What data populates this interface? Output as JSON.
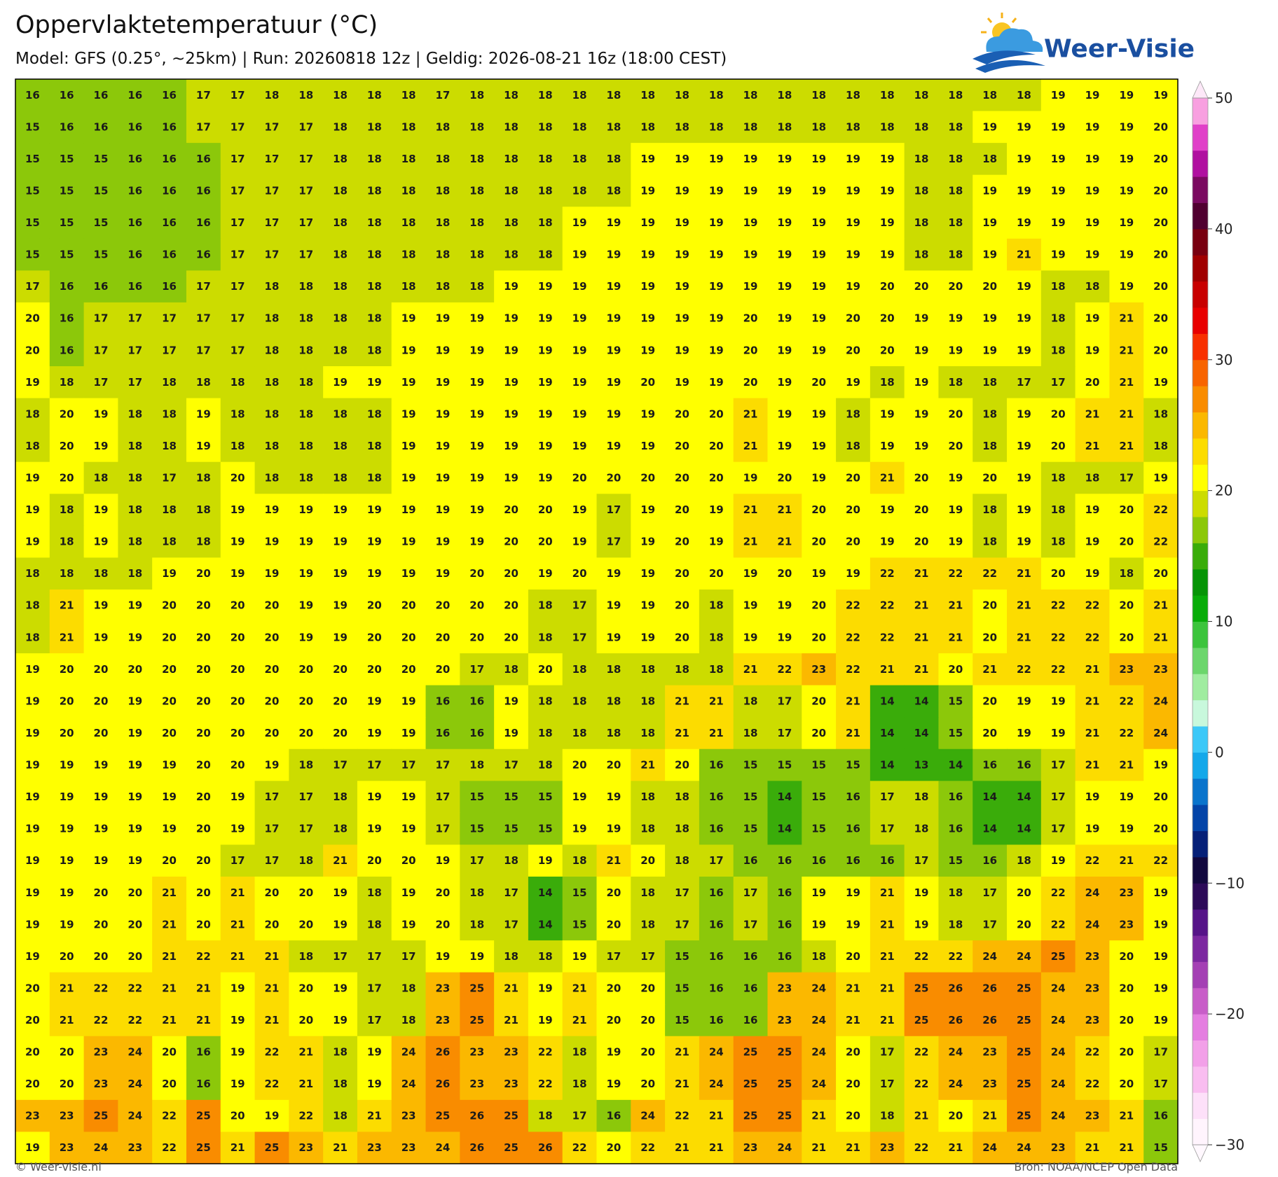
{
  "header": {
    "title": "Oppervlaktetemperatuur (°C)",
    "subtitle": "Model: GFS (0.25°, ~25km)  |  Run: 20260818 12z  |  Geldig: 2026-08-21 16z (18:00 CEST)",
    "logo": "Weer-Visie"
  },
  "chart_data": {
    "type": "heatmap",
    "values": [
      [
        16,
        16,
        16,
        16,
        16,
        17,
        17,
        18,
        18,
        18,
        18,
        18,
        17,
        18,
        18,
        18,
        18,
        18,
        18,
        18,
        18,
        18,
        18,
        18,
        18,
        18,
        18,
        18,
        18,
        18,
        19,
        19,
        19,
        19
      ],
      [
        15,
        16,
        16,
        16,
        16,
        17,
        17,
        17,
        17,
        18,
        18,
        18,
        18,
        18,
        18,
        18,
        18,
        18,
        18,
        18,
        18,
        18,
        18,
        18,
        18,
        18,
        18,
        18,
        19,
        19,
        19,
        19,
        19,
        20
      ],
      [
        15,
        15,
        15,
        16,
        16,
        16,
        17,
        17,
        17,
        18,
        18,
        18,
        18,
        18,
        18,
        18,
        18,
        18,
        19,
        19,
        19,
        19,
        19,
        19,
        19,
        19,
        18,
        18,
        18,
        19,
        19,
        19,
        19,
        20
      ],
      [
        15,
        15,
        15,
        16,
        16,
        16,
        17,
        17,
        17,
        18,
        18,
        18,
        18,
        18,
        18,
        18,
        18,
        18,
        19,
        19,
        19,
        19,
        19,
        19,
        19,
        19,
        18,
        18,
        19,
        19,
        19,
        19,
        19,
        20
      ],
      [
        15,
        15,
        15,
        16,
        16,
        16,
        17,
        17,
        17,
        18,
        18,
        18,
        18,
        18,
        18,
        18,
        19,
        19,
        19,
        19,
        19,
        19,
        19,
        19,
        19,
        19,
        18,
        18,
        19,
        19,
        19,
        19,
        19,
        20
      ],
      [
        15,
        15,
        15,
        16,
        16,
        16,
        17,
        17,
        17,
        18,
        18,
        18,
        18,
        18,
        18,
        18,
        19,
        19,
        19,
        19,
        19,
        19,
        19,
        19,
        19,
        19,
        18,
        18,
        19,
        21,
        19,
        19,
        19,
        20
      ],
      [
        17,
        16,
        16,
        16,
        16,
        17,
        17,
        18,
        18,
        18,
        18,
        18,
        18,
        18,
        19,
        19,
        19,
        19,
        19,
        19,
        19,
        19,
        19,
        19,
        19,
        20,
        20,
        20,
        20,
        19,
        18,
        18,
        19,
        20
      ],
      [
        20,
        16,
        17,
        17,
        17,
        17,
        17,
        18,
        18,
        18,
        18,
        19,
        19,
        19,
        19,
        19,
        19,
        19,
        19,
        19,
        19,
        20,
        19,
        19,
        20,
        20,
        19,
        19,
        19,
        19,
        18,
        19,
        21,
        20
      ],
      [
        20,
        16,
        17,
        17,
        17,
        17,
        17,
        18,
        18,
        18,
        18,
        19,
        19,
        19,
        19,
        19,
        19,
        19,
        19,
        19,
        19,
        20,
        19,
        19,
        20,
        20,
        19,
        19,
        19,
        19,
        18,
        19,
        21,
        20
      ],
      [
        19,
        18,
        17,
        17,
        18,
        18,
        18,
        18,
        18,
        19,
        19,
        19,
        19,
        19,
        19,
        19,
        19,
        19,
        20,
        19,
        19,
        20,
        19,
        20,
        19,
        18,
        19,
        18,
        18,
        17,
        17,
        20,
        21,
        19
      ],
      [
        18,
        20,
        19,
        18,
        18,
        19,
        18,
        18,
        18,
        18,
        18,
        19,
        19,
        19,
        19,
        19,
        19,
        19,
        19,
        20,
        20,
        21,
        19,
        19,
        18,
        19,
        19,
        20,
        18,
        19,
        20,
        21,
        21,
        18
      ],
      [
        18,
        20,
        19,
        18,
        18,
        19,
        18,
        18,
        18,
        18,
        18,
        19,
        19,
        19,
        19,
        19,
        19,
        19,
        19,
        20,
        20,
        21,
        19,
        19,
        18,
        19,
        19,
        20,
        18,
        19,
        20,
        21,
        21,
        18
      ],
      [
        19,
        20,
        18,
        18,
        17,
        18,
        20,
        18,
        18,
        18,
        18,
        19,
        19,
        19,
        19,
        19,
        20,
        20,
        20,
        20,
        20,
        19,
        20,
        19,
        20,
        21,
        20,
        19,
        20,
        19,
        18,
        18,
        17,
        19
      ],
      [
        19,
        18,
        19,
        18,
        18,
        18,
        19,
        19,
        19,
        19,
        19,
        19,
        19,
        19,
        20,
        20,
        19,
        17,
        19,
        20,
        19,
        21,
        21,
        20,
        20,
        19,
        20,
        19,
        18,
        19,
        18,
        19,
        20,
        22
      ],
      [
        19,
        18,
        19,
        18,
        18,
        18,
        19,
        19,
        19,
        19,
        19,
        19,
        19,
        19,
        20,
        20,
        19,
        17,
        19,
        20,
        19,
        21,
        21,
        20,
        20,
        19,
        20,
        19,
        18,
        19,
        18,
        19,
        20,
        22
      ],
      [
        18,
        18,
        18,
        18,
        19,
        20,
        19,
        19,
        19,
        19,
        19,
        19,
        19,
        20,
        20,
        19,
        20,
        19,
        19,
        20,
        20,
        19,
        20,
        19,
        19,
        22,
        21,
        22,
        22,
        21,
        20,
        19,
        18,
        20
      ],
      [
        18,
        21,
        19,
        19,
        20,
        20,
        20,
        20,
        19,
        19,
        20,
        20,
        20,
        20,
        20,
        18,
        17,
        19,
        19,
        20,
        18,
        19,
        19,
        20,
        22,
        22,
        21,
        21,
        20,
        21,
        22,
        22,
        20,
        21
      ],
      [
        18,
        21,
        19,
        19,
        20,
        20,
        20,
        20,
        19,
        19,
        20,
        20,
        20,
        20,
        20,
        18,
        17,
        19,
        19,
        20,
        18,
        19,
        19,
        20,
        22,
        22,
        21,
        21,
        20,
        21,
        22,
        22,
        20,
        21
      ],
      [
        19,
        20,
        20,
        20,
        20,
        20,
        20,
        20,
        20,
        20,
        20,
        20,
        20,
        17,
        18,
        20,
        18,
        18,
        18,
        18,
        18,
        21,
        22,
        23,
        22,
        21,
        21,
        20,
        21,
        22,
        22,
        21,
        23,
        23
      ],
      [
        19,
        20,
        20,
        19,
        20,
        20,
        20,
        20,
        20,
        20,
        19,
        19,
        16,
        16,
        19,
        18,
        18,
        18,
        18,
        21,
        21,
        18,
        17,
        20,
        21,
        14,
        14,
        15,
        20,
        19,
        19,
        21,
        22,
        24
      ],
      [
        19,
        20,
        20,
        19,
        20,
        20,
        20,
        20,
        20,
        20,
        19,
        19,
        16,
        16,
        19,
        18,
        18,
        18,
        18,
        21,
        21,
        18,
        17,
        20,
        21,
        14,
        14,
        15,
        20,
        19,
        19,
        21,
        22,
        24
      ],
      [
        19,
        19,
        19,
        19,
        19,
        20,
        20,
        19,
        18,
        17,
        17,
        17,
        17,
        18,
        17,
        18,
        20,
        20,
        21,
        20,
        16,
        15,
        15,
        15,
        15,
        14,
        13,
        14,
        16,
        16,
        17,
        21,
        21,
        19
      ],
      [
        19,
        19,
        19,
        19,
        19,
        20,
        19,
        17,
        17,
        18,
        19,
        19,
        17,
        15,
        15,
        15,
        19,
        19,
        18,
        18,
        16,
        15,
        14,
        15,
        16,
        17,
        18,
        16,
        14,
        14,
        17,
        19,
        19,
        20
      ],
      [
        19,
        19,
        19,
        19,
        19,
        20,
        19,
        17,
        17,
        18,
        19,
        19,
        17,
        15,
        15,
        15,
        19,
        19,
        18,
        18,
        16,
        15,
        14,
        15,
        16,
        17,
        18,
        16,
        14,
        14,
        17,
        19,
        19,
        20
      ],
      [
        19,
        19,
        19,
        19,
        20,
        20,
        17,
        17,
        18,
        21,
        20,
        20,
        19,
        17,
        18,
        19,
        18,
        21,
        20,
        18,
        17,
        16,
        16,
        16,
        16,
        16,
        17,
        15,
        16,
        18,
        19,
        22,
        21,
        22
      ],
      [
        19,
        19,
        20,
        20,
        21,
        20,
        21,
        20,
        20,
        19,
        18,
        19,
        20,
        18,
        17,
        14,
        15,
        20,
        18,
        17,
        16,
        17,
        16,
        19,
        19,
        21,
        19,
        18,
        17,
        20,
        22,
        24,
        23,
        19
      ],
      [
        19,
        19,
        20,
        20,
        21,
        20,
        21,
        20,
        20,
        19,
        18,
        19,
        20,
        18,
        17,
        14,
        15,
        20,
        18,
        17,
        16,
        17,
        16,
        19,
        19,
        21,
        19,
        18,
        17,
        20,
        22,
        24,
        23,
        19
      ],
      [
        19,
        20,
        20,
        20,
        21,
        22,
        21,
        21,
        18,
        17,
        17,
        17,
        19,
        19,
        18,
        18,
        19,
        17,
        17,
        15,
        16,
        16,
        16,
        18,
        20,
        21,
        22,
        22,
        24,
        24,
        25,
        23,
        20,
        19
      ],
      [
        20,
        21,
        22,
        22,
        21,
        21,
        19,
        21,
        20,
        19,
        17,
        18,
        23,
        25,
        21,
        19,
        21,
        20,
        20,
        15,
        16,
        16,
        23,
        24,
        21,
        21,
        25,
        26,
        26,
        25,
        24,
        23,
        20,
        19
      ],
      [
        20,
        21,
        22,
        22,
        21,
        21,
        19,
        21,
        20,
        19,
        17,
        18,
        23,
        25,
        21,
        19,
        21,
        20,
        20,
        15,
        16,
        16,
        23,
        24,
        21,
        21,
        25,
        26,
        26,
        25,
        24,
        23,
        20,
        19
      ],
      [
        20,
        20,
        23,
        24,
        20,
        16,
        19,
        22,
        21,
        18,
        19,
        24,
        26,
        23,
        23,
        22,
        18,
        19,
        20,
        21,
        24,
        25,
        25,
        24,
        20,
        17,
        22,
        24,
        23,
        25,
        24,
        22,
        20,
        17
      ],
      [
        20,
        20,
        23,
        24,
        20,
        16,
        19,
        22,
        21,
        18,
        19,
        24,
        26,
        23,
        23,
        22,
        18,
        19,
        20,
        21,
        24,
        25,
        25,
        24,
        20,
        17,
        22,
        24,
        23,
        25,
        24,
        22,
        20,
        17
      ],
      [
        23,
        23,
        25,
        24,
        22,
        25,
        20,
        19,
        22,
        18,
        21,
        23,
        25,
        26,
        25,
        18,
        17,
        16,
        24,
        22,
        21,
        25,
        25,
        21,
        20,
        18,
        21,
        20,
        21,
        25,
        24,
        23,
        21,
        16
      ],
      [
        19,
        23,
        24,
        23,
        22,
        25,
        21,
        25,
        23,
        21,
        23,
        23,
        24,
        26,
        25,
        26,
        22,
        20,
        22,
        21,
        21,
        23,
        24,
        21,
        21,
        23,
        22,
        21,
        24,
        24,
        23,
        21,
        21,
        15
      ]
    ],
    "colorbar": {
      "lim": [
        -30,
        50
      ],
      "ticks": [
        {
          "value": -30,
          "label": "−30"
        },
        {
          "value": -20,
          "label": "−20"
        },
        {
          "value": -10,
          "label": "−10"
        },
        0,
        10,
        20,
        30,
        40,
        50
      ],
      "colors": [
        "#fff4fd",
        "#fde0f9",
        "#f9bdf0",
        "#f2a0e8",
        "#e47ee0",
        "#c85ec8",
        "#a440b4",
        "#7c28a0",
        "#561488",
        "#2c0a58",
        "#12083e",
        "#062078",
        "#0444a8",
        "#0a74cc",
        "#14a8ea",
        "#3cc8f8",
        "#c8f8dc",
        "#a0eca0",
        "#6cd66c",
        "#3cc43c",
        "#08ac08",
        "#069406",
        "#3aac0a",
        "#8cc80a",
        "#ccdc00",
        "#ffff00",
        "#fcdc00",
        "#fbb800",
        "#f98c00",
        "#f86400",
        "#f83000",
        "#e80000",
        "#c80000",
        "#a00000",
        "#780010",
        "#500030",
        "#7a0a60",
        "#b010a0",
        "#e040c8",
        "#f8a0e0"
      ]
    }
  },
  "footer": {
    "left": "© Weer-visie.nl",
    "right": "Bron: NOAA/NCEP Open Data"
  }
}
